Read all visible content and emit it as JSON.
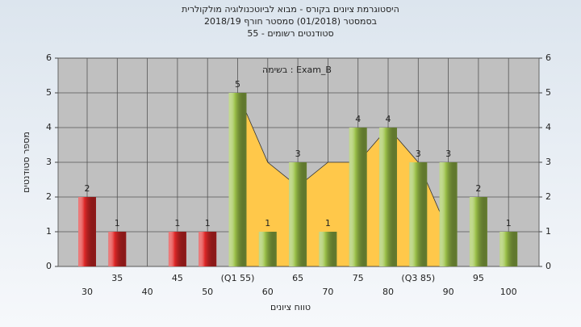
{
  "chart_data": {
    "type": "bar",
    "title": "היסטוגרמת ציונים בקורס - מבוא לביוטכנולוגיה מולקולרית",
    "subtitle": "בסמסטר  (01/2018)  סמסטר חורף 2018/19",
    "subtitle2": "סטודנטים רשומים - 55",
    "annotation": "בשימה : Exam_B",
    "x_label": "טווח ציונים",
    "y_label": "מספר סטודנטים",
    "categories": [
      "30",
      "35",
      "40",
      "45",
      "50",
      "(Q1 55)",
      "60",
      "65",
      "70",
      "75",
      "80",
      "(Q3 85)",
      "90",
      "95",
      "100"
    ],
    "values": [
      2,
      1,
      0,
      1,
      1,
      5,
      1,
      3,
      1,
      4,
      4,
      3,
      3,
      2,
      1
    ],
    "colors": [
      "#e02828",
      "#e02828",
      "#e02828",
      "#e02828",
      "#e02828",
      "#9cc24a",
      "#9cc24a",
      "#9cc24a",
      "#9cc24a",
      "#9cc24a",
      "#9cc24a",
      "#9cc24a",
      "#9cc24a",
      "#9cc24a",
      "#9cc24a"
    ],
    "area": {
      "color": "#ffc84a",
      "values": [
        null,
        null,
        null,
        null,
        null,
        5,
        3,
        2.3,
        3,
        3,
        4,
        3,
        1,
        null,
        null
      ]
    },
    "ylim": [
      0,
      6
    ],
    "yticks": [
      0,
      1,
      2,
      3,
      4,
      5,
      6
    ],
    "y2lim": [
      0,
      6
    ],
    "y2ticks": [
      0,
      1,
      2,
      3,
      4,
      5,
      6
    ],
    "grid": true
  }
}
